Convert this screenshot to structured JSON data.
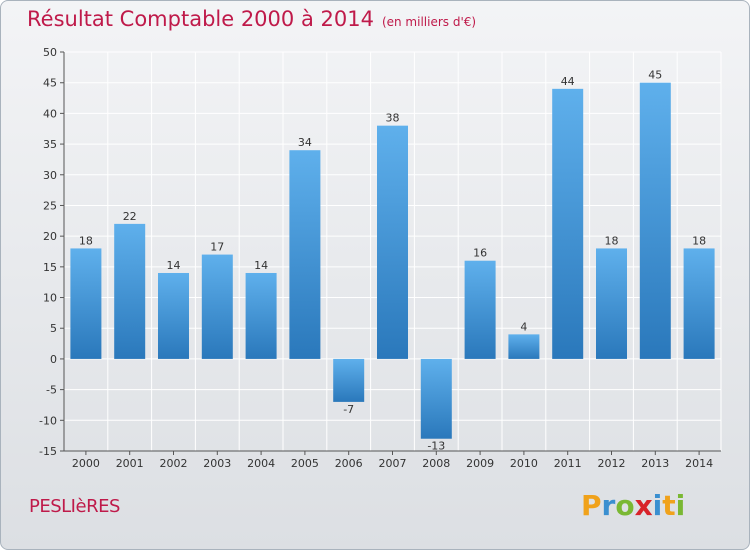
{
  "header": {
    "title": "Résultat Comptable 2000 à 2014",
    "subtitle": "(en milliers d'€)"
  },
  "footer": {
    "town": "PESLIèRES",
    "logo_letters": [
      "P",
      "r",
      "o",
      "x",
      "i",
      "t",
      "i"
    ],
    "logo_colors": [
      "#f0a21b",
      "#3a8fd0",
      "#7ab833",
      "#d8232a",
      "#3a8fd0",
      "#f0a21b",
      "#7ab833"
    ]
  },
  "colors": {
    "bar_light": "#5fb0ec",
    "bar_dark": "#2a78bb",
    "grid": "#ffffff",
    "axis_text": "#333333"
  },
  "chart_data": {
    "type": "bar",
    "title": "Résultat Comptable 2000 à 2014",
    "subtitle": "(en milliers d'€)",
    "xlabel": "",
    "ylabel": "",
    "categories": [
      "2000",
      "2001",
      "2002",
      "2003",
      "2004",
      "2005",
      "2006",
      "2007",
      "2008",
      "2009",
      "2010",
      "2011",
      "2012",
      "2013",
      "2014"
    ],
    "values": [
      18,
      22,
      14,
      17,
      14,
      34,
      -7,
      38,
      -13,
      16,
      4,
      44,
      18,
      45,
      18
    ],
    "ylim": [
      -15,
      50
    ],
    "yticks": [
      -15,
      -10,
      -5,
      0,
      5,
      10,
      15,
      20,
      25,
      30,
      35,
      40,
      45,
      50
    ],
    "grid": true
  }
}
